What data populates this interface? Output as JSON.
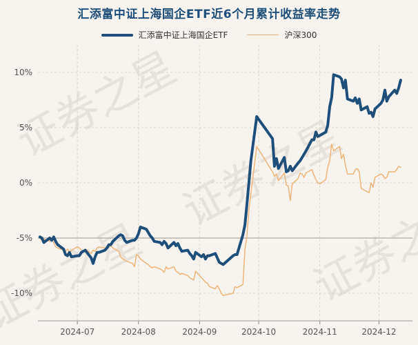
{
  "chart_data": {
    "type": "line",
    "title": "汇添富中证上海国企ETF近6个月累计收益率走势",
    "xlabel": "",
    "ylabel": "",
    "ylim": [
      -12.5,
      12.5
    ],
    "grid": true,
    "legend_position": "top",
    "y_ticks": [
      "10%",
      "5%",
      "0%",
      "-5%",
      "-10%"
    ],
    "y_tick_values": [
      10,
      5,
      0,
      -5,
      -10
    ],
    "x_ticks": [
      "2024-07",
      "2024-08",
      "2024-09",
      "2024-10",
      "2024-11",
      "2024-12"
    ],
    "x_tick_dates": [
      "2024-07-01",
      "2024-08-01",
      "2024-09-01",
      "2024-10-01",
      "2024-11-01",
      "2024-12-01"
    ],
    "x_range": [
      "2024-06-11",
      "2024-12-18"
    ],
    "reference_line": -5,
    "watermark": "证券之星",
    "series": [
      {
        "name": "汇添富中证上海国企ETF",
        "color": "#1f4e79",
        "points": [
          [
            "2024-06-12",
            -4.9
          ],
          [
            "2024-06-13",
            -5.0
          ],
          [
            "2024-06-14",
            -5.4
          ],
          [
            "2024-06-17",
            -5.0
          ],
          [
            "2024-06-18",
            -5.2
          ],
          [
            "2024-06-19",
            -4.9
          ],
          [
            "2024-06-20",
            -5.3
          ],
          [
            "2024-06-21",
            -5.6
          ],
          [
            "2024-06-24",
            -6.0
          ],
          [
            "2024-06-25",
            -6.5
          ],
          [
            "2024-06-26",
            -6.6
          ],
          [
            "2024-06-27",
            -6.3
          ],
          [
            "2024-06-28",
            -6.7
          ],
          [
            "2024-07-01",
            -6.6
          ],
          [
            "2024-07-02",
            -6.6
          ],
          [
            "2024-07-03",
            -6.3
          ],
          [
            "2024-07-04",
            -6.2
          ],
          [
            "2024-07-05",
            -6.1
          ],
          [
            "2024-07-08",
            -6.8
          ],
          [
            "2024-07-09",
            -7.3
          ],
          [
            "2024-07-10",
            -6.7
          ],
          [
            "2024-07-11",
            -6.3
          ],
          [
            "2024-07-12",
            -6.3
          ],
          [
            "2024-07-15",
            -6.1
          ],
          [
            "2024-07-16",
            -5.9
          ],
          [
            "2024-07-17",
            -5.6
          ],
          [
            "2024-07-18",
            -5.6
          ],
          [
            "2024-07-19",
            -5.3
          ],
          [
            "2024-07-22",
            -4.8
          ],
          [
            "2024-07-23",
            -4.7
          ],
          [
            "2024-07-24",
            -4.8
          ],
          [
            "2024-07-25",
            -5.2
          ],
          [
            "2024-07-26",
            -5.4
          ],
          [
            "2024-07-29",
            -5.2
          ],
          [
            "2024-07-30",
            -5.2
          ],
          [
            "2024-07-31",
            -5.0
          ],
          [
            "2024-08-01",
            -4.6
          ],
          [
            "2024-08-02",
            -4.0
          ],
          [
            "2024-08-05",
            -4.2
          ],
          [
            "2024-08-06",
            -4.5
          ],
          [
            "2024-08-07",
            -4.8
          ],
          [
            "2024-08-08",
            -5.0
          ],
          [
            "2024-08-09",
            -5.3
          ],
          [
            "2024-08-12",
            -5.4
          ],
          [
            "2024-08-13",
            -5.6
          ],
          [
            "2024-08-14",
            -5.3
          ],
          [
            "2024-08-15",
            -5.5
          ],
          [
            "2024-08-16",
            -5.9
          ],
          [
            "2024-08-19",
            -5.4
          ],
          [
            "2024-08-20",
            -5.7
          ],
          [
            "2024-08-21",
            -5.5
          ],
          [
            "2024-08-22",
            -5.9
          ],
          [
            "2024-08-23",
            -6.2
          ],
          [
            "2024-08-26",
            -6.1
          ],
          [
            "2024-08-27",
            -6.4
          ],
          [
            "2024-08-28",
            -6.6
          ],
          [
            "2024-08-29",
            -6.9
          ],
          [
            "2024-08-30",
            -6.3
          ],
          [
            "2024-09-02",
            -6.7
          ],
          [
            "2024-09-03",
            -6.5
          ],
          [
            "2024-09-04",
            -6.9
          ],
          [
            "2024-09-05",
            -6.6
          ],
          [
            "2024-09-06",
            -6.6
          ],
          [
            "2024-09-09",
            -6.4
          ],
          [
            "2024-09-10",
            -6.8
          ],
          [
            "2024-09-11",
            -7.2
          ],
          [
            "2024-09-12",
            -7.3
          ],
          [
            "2024-09-13",
            -7.4
          ],
          [
            "2024-09-18",
            -6.6
          ],
          [
            "2024-09-19",
            -6.5
          ],
          [
            "2024-09-20",
            -6.5
          ],
          [
            "2024-09-23",
            -4.7
          ],
          [
            "2024-09-24",
            -3.8
          ],
          [
            "2024-09-25",
            -2.0
          ],
          [
            "2024-09-26",
            0.0
          ],
          [
            "2024-09-27",
            2.0
          ],
          [
            "2024-09-30",
            6.0
          ],
          [
            "2024-10-08",
            4.0
          ],
          [
            "2024-10-09",
            1.5
          ],
          [
            "2024-10-10",
            2.2
          ],
          [
            "2024-10-11",
            1.3
          ],
          [
            "2024-10-14",
            2.3
          ],
          [
            "2024-10-15",
            1.0
          ],
          [
            "2024-10-16",
            1.1
          ],
          [
            "2024-10-17",
            1.5
          ],
          [
            "2024-10-18",
            1.1
          ],
          [
            "2024-10-21",
            1.8
          ],
          [
            "2024-10-22",
            2.0
          ],
          [
            "2024-10-23",
            2.3
          ],
          [
            "2024-10-24",
            2.6
          ],
          [
            "2024-10-25",
            2.9
          ],
          [
            "2024-10-28",
            3.9
          ],
          [
            "2024-10-29",
            3.9
          ],
          [
            "2024-10-30",
            4.6
          ],
          [
            "2024-10-31",
            4.2
          ],
          [
            "2024-11-01",
            4.3
          ],
          [
            "2024-11-04",
            4.6
          ],
          [
            "2024-11-05",
            5.2
          ],
          [
            "2024-11-06",
            6.9
          ],
          [
            "2024-11-07",
            7.7
          ],
          [
            "2024-11-08",
            9.8
          ],
          [
            "2024-11-11",
            9.6
          ],
          [
            "2024-11-12",
            9.4
          ],
          [
            "2024-11-13",
            8.6
          ],
          [
            "2024-11-14",
            9.3
          ],
          [
            "2024-11-15",
            7.6
          ],
          [
            "2024-11-18",
            7.4
          ],
          [
            "2024-11-19",
            7.7
          ],
          [
            "2024-11-20",
            7.2
          ],
          [
            "2024-11-21",
            7.6
          ],
          [
            "2024-11-22",
            6.6
          ],
          [
            "2024-11-25",
            6.9
          ],
          [
            "2024-11-26",
            6.3
          ],
          [
            "2024-11-27",
            6.4
          ],
          [
            "2024-11-28",
            6.0
          ],
          [
            "2024-11-29",
            6.7
          ],
          [
            "2024-12-02",
            7.2
          ],
          [
            "2024-12-03",
            7.5
          ],
          [
            "2024-12-04",
            8.4
          ],
          [
            "2024-12-05",
            7.4
          ],
          [
            "2024-12-06",
            7.8
          ],
          [
            "2024-12-09",
            8.4
          ],
          [
            "2024-12-10",
            8.1
          ],
          [
            "2024-12-11",
            8.6
          ],
          [
            "2024-12-12",
            9.3
          ]
        ]
      },
      {
        "name": "沪深300",
        "color": "#f0b57a",
        "points": [
          [
            "2024-06-12",
            -5.0
          ],
          [
            "2024-06-13",
            -5.2
          ],
          [
            "2024-06-14",
            -5.1
          ],
          [
            "2024-06-17",
            -5.3
          ],
          [
            "2024-06-18",
            -5.2
          ],
          [
            "2024-06-19",
            -5.4
          ],
          [
            "2024-06-20",
            -5.8
          ],
          [
            "2024-06-21",
            -5.9
          ],
          [
            "2024-06-24",
            -6.1
          ],
          [
            "2024-06-25",
            -6.2
          ],
          [
            "2024-06-26",
            -6.0
          ],
          [
            "2024-06-27",
            -6.3
          ],
          [
            "2024-06-28",
            -6.1
          ],
          [
            "2024-07-01",
            -5.8
          ],
          [
            "2024-07-02",
            -5.9
          ],
          [
            "2024-07-03",
            -6.1
          ],
          [
            "2024-07-04",
            -6.2
          ],
          [
            "2024-07-05",
            -6.0
          ],
          [
            "2024-07-08",
            -6.4
          ],
          [
            "2024-07-09",
            -6.1
          ],
          [
            "2024-07-10",
            -6.2
          ],
          [
            "2024-07-11",
            -5.9
          ],
          [
            "2024-07-12",
            -5.8
          ],
          [
            "2024-07-15",
            -5.9
          ],
          [
            "2024-07-16",
            -6.0
          ],
          [
            "2024-07-17",
            -5.8
          ],
          [
            "2024-07-18",
            -5.7
          ],
          [
            "2024-07-19",
            -5.9
          ],
          [
            "2024-07-22",
            -6.2
          ],
          [
            "2024-07-23",
            -6.7
          ],
          [
            "2024-07-24",
            -6.9
          ],
          [
            "2024-07-25",
            -7.0
          ],
          [
            "2024-07-26",
            -7.1
          ],
          [
            "2024-07-29",
            -7.3
          ],
          [
            "2024-07-30",
            -7.6
          ],
          [
            "2024-07-31",
            -6.5
          ],
          [
            "2024-08-01",
            -6.6
          ],
          [
            "2024-08-02",
            -6.9
          ],
          [
            "2024-08-05",
            -7.3
          ],
          [
            "2024-08-06",
            -7.4
          ],
          [
            "2024-08-07",
            -7.6
          ],
          [
            "2024-08-08",
            -7.7
          ],
          [
            "2024-08-09",
            -7.6
          ],
          [
            "2024-08-12",
            -7.8
          ],
          [
            "2024-08-13",
            -7.9
          ],
          [
            "2024-08-14",
            -8.1
          ],
          [
            "2024-08-15",
            -7.6
          ],
          [
            "2024-08-16",
            -7.8
          ],
          [
            "2024-08-19",
            -7.6
          ],
          [
            "2024-08-20",
            -8.0
          ],
          [
            "2024-08-21",
            -8.1
          ],
          [
            "2024-08-22",
            -8.3
          ],
          [
            "2024-08-23",
            -8.2
          ],
          [
            "2024-08-26",
            -8.4
          ],
          [
            "2024-08-27",
            -8.6
          ],
          [
            "2024-08-28",
            -8.7
          ],
          [
            "2024-08-29",
            -8.8
          ],
          [
            "2024-08-30",
            -8.0
          ],
          [
            "2024-09-02",
            -8.6
          ],
          [
            "2024-09-03",
            -8.8
          ],
          [
            "2024-09-04",
            -9.0
          ],
          [
            "2024-09-05",
            -9.1
          ],
          [
            "2024-09-06",
            -9.4
          ],
          [
            "2024-09-09",
            -9.6
          ],
          [
            "2024-09-10",
            -9.3
          ],
          [
            "2024-09-11",
            -9.6
          ],
          [
            "2024-09-12",
            -10.0
          ],
          [
            "2024-09-13",
            -10.2
          ],
          [
            "2024-09-18",
            -10.0
          ],
          [
            "2024-09-19",
            -9.4
          ],
          [
            "2024-09-20",
            -9.5
          ],
          [
            "2024-09-23",
            -9.2
          ],
          [
            "2024-09-24",
            -6.0
          ],
          [
            "2024-09-25",
            -4.9
          ],
          [
            "2024-09-26",
            -2.5
          ],
          [
            "2024-09-27",
            -1.0
          ],
          [
            "2024-09-30",
            3.3
          ],
          [
            "2024-10-08",
            1.0
          ],
          [
            "2024-10-09",
            0.6
          ],
          [
            "2024-10-10",
            0.8
          ],
          [
            "2024-10-11",
            0.2
          ],
          [
            "2024-10-14",
            0.9
          ],
          [
            "2024-10-15",
            -0.2
          ],
          [
            "2024-10-16",
            -0.3
          ],
          [
            "2024-10-17",
            -1.6
          ],
          [
            "2024-10-18",
            -0.1
          ],
          [
            "2024-10-21",
            0.4
          ],
          [
            "2024-10-22",
            0.9
          ],
          [
            "2024-10-23",
            0.8
          ],
          [
            "2024-10-24",
            0.5
          ],
          [
            "2024-10-25",
            0.9
          ],
          [
            "2024-10-28",
            1.2
          ],
          [
            "2024-10-29",
            0.7
          ],
          [
            "2024-10-30",
            0.3
          ],
          [
            "2024-10-31",
            0.0
          ],
          [
            "2024-11-01",
            -0.1
          ],
          [
            "2024-11-04",
            0.3
          ],
          [
            "2024-11-05",
            1.4
          ],
          [
            "2024-11-06",
            2.0
          ],
          [
            "2024-11-07",
            3.5
          ],
          [
            "2024-11-08",
            2.9
          ],
          [
            "2024-11-11",
            3.3
          ],
          [
            "2024-11-12",
            2.2
          ],
          [
            "2024-11-13",
            2.6
          ],
          [
            "2024-11-14",
            1.6
          ],
          [
            "2024-11-15",
            0.8
          ],
          [
            "2024-11-18",
            0.8
          ],
          [
            "2024-11-19",
            1.2
          ],
          [
            "2024-11-20",
            1.3
          ],
          [
            "2024-11-21",
            1.0
          ],
          [
            "2024-11-22",
            -0.5
          ],
          [
            "2024-11-25",
            -0.8
          ],
          [
            "2024-11-26",
            -0.9
          ],
          [
            "2024-11-27",
            0.0
          ],
          [
            "2024-11-28",
            -0.4
          ],
          [
            "2024-11-29",
            0.5
          ],
          [
            "2024-12-02",
            0.8
          ],
          [
            "2024-12-03",
            0.7
          ],
          [
            "2024-12-04",
            0.4
          ],
          [
            "2024-12-05",
            0.5
          ],
          [
            "2024-12-06",
            1.0
          ],
          [
            "2024-12-09",
            1.0
          ],
          [
            "2024-12-10",
            1.2
          ],
          [
            "2024-12-11",
            1.5
          ],
          [
            "2024-12-12",
            1.4
          ]
        ]
      }
    ]
  }
}
